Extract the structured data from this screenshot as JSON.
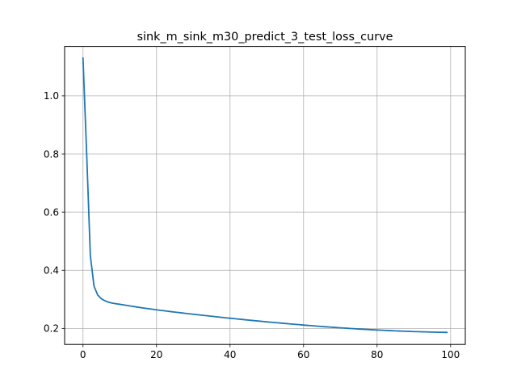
{
  "chart_data": {
    "type": "line",
    "title": "sink_m_sink_m30_predict_3_test_loss_curve",
    "xlabel": "",
    "ylabel": "",
    "xlim": [
      -5,
      104
    ],
    "ylim": [
      0.145,
      1.17
    ],
    "xticks": [
      0,
      20,
      40,
      60,
      80,
      100
    ],
    "yticks": [
      0.2,
      0.4,
      0.6,
      0.8,
      1.0
    ],
    "xtick_labels": [
      "0",
      "20",
      "40",
      "60",
      "80",
      "100"
    ],
    "ytick_labels": [
      "0.2",
      "0.4",
      "0.6",
      "0.8",
      "1.0"
    ],
    "grid": true,
    "legend": false,
    "line_color": "#1f77b4",
    "grid_color": "#b0b0b0",
    "series": [
      {
        "x": [
          0,
          1,
          2,
          3,
          4,
          5,
          6,
          7,
          8,
          9,
          10,
          11,
          12,
          13,
          14,
          15,
          16,
          17,
          18,
          19,
          20,
          21,
          22,
          23,
          24,
          25,
          26,
          27,
          28,
          29,
          30,
          31,
          32,
          33,
          34,
          35,
          36,
          37,
          38,
          39,
          40,
          41,
          42,
          43,
          44,
          45,
          46,
          47,
          48,
          49,
          50,
          51,
          52,
          53,
          54,
          55,
          56,
          57,
          58,
          59,
          60,
          61,
          62,
          63,
          64,
          65,
          66,
          67,
          68,
          69,
          70,
          71,
          72,
          73,
          74,
          75,
          76,
          77,
          78,
          79,
          80,
          81,
          82,
          83,
          84,
          85,
          86,
          87,
          88,
          89,
          90,
          91,
          92,
          93,
          94,
          95,
          96,
          97,
          98,
          99
        ],
        "values": [
          1.13,
          0.8,
          0.45,
          0.345,
          0.315,
          0.302,
          0.295,
          0.29,
          0.287,
          0.285,
          0.283,
          0.281,
          0.279,
          0.277,
          0.275,
          0.273,
          0.271,
          0.2693,
          0.2676,
          0.2659,
          0.2642,
          0.2625,
          0.2609,
          0.2593,
          0.2577,
          0.2562,
          0.2547,
          0.2532,
          0.2517,
          0.2503,
          0.2489,
          0.2475,
          0.2461,
          0.2447,
          0.2433,
          0.2419,
          0.2405,
          0.2391,
          0.2378,
          0.2365,
          0.2352,
          0.2339,
          0.2326,
          0.2313,
          0.23,
          0.2287,
          0.2275,
          0.2263,
          0.2251,
          0.2239,
          0.2227,
          0.2215,
          0.2204,
          0.2193,
          0.2182,
          0.2171,
          0.216,
          0.2149,
          0.2138,
          0.2127,
          0.2116,
          0.2106,
          0.2096,
          0.2086,
          0.2076,
          0.2066,
          0.2057,
          0.2048,
          0.2039,
          0.203,
          0.2021,
          0.2013,
          0.2005,
          0.1997,
          0.1989,
          0.1981,
          0.1974,
          0.1967,
          0.196,
          0.1953,
          0.1946,
          0.194,
          0.1934,
          0.1928,
          0.1922,
          0.1917,
          0.1912,
          0.1907,
          0.1902,
          0.1897,
          0.1893,
          0.1889,
          0.1885,
          0.1881,
          0.1878,
          0.1875,
          0.1872,
          0.1869,
          0.1866,
          0.1863
        ]
      }
    ]
  }
}
